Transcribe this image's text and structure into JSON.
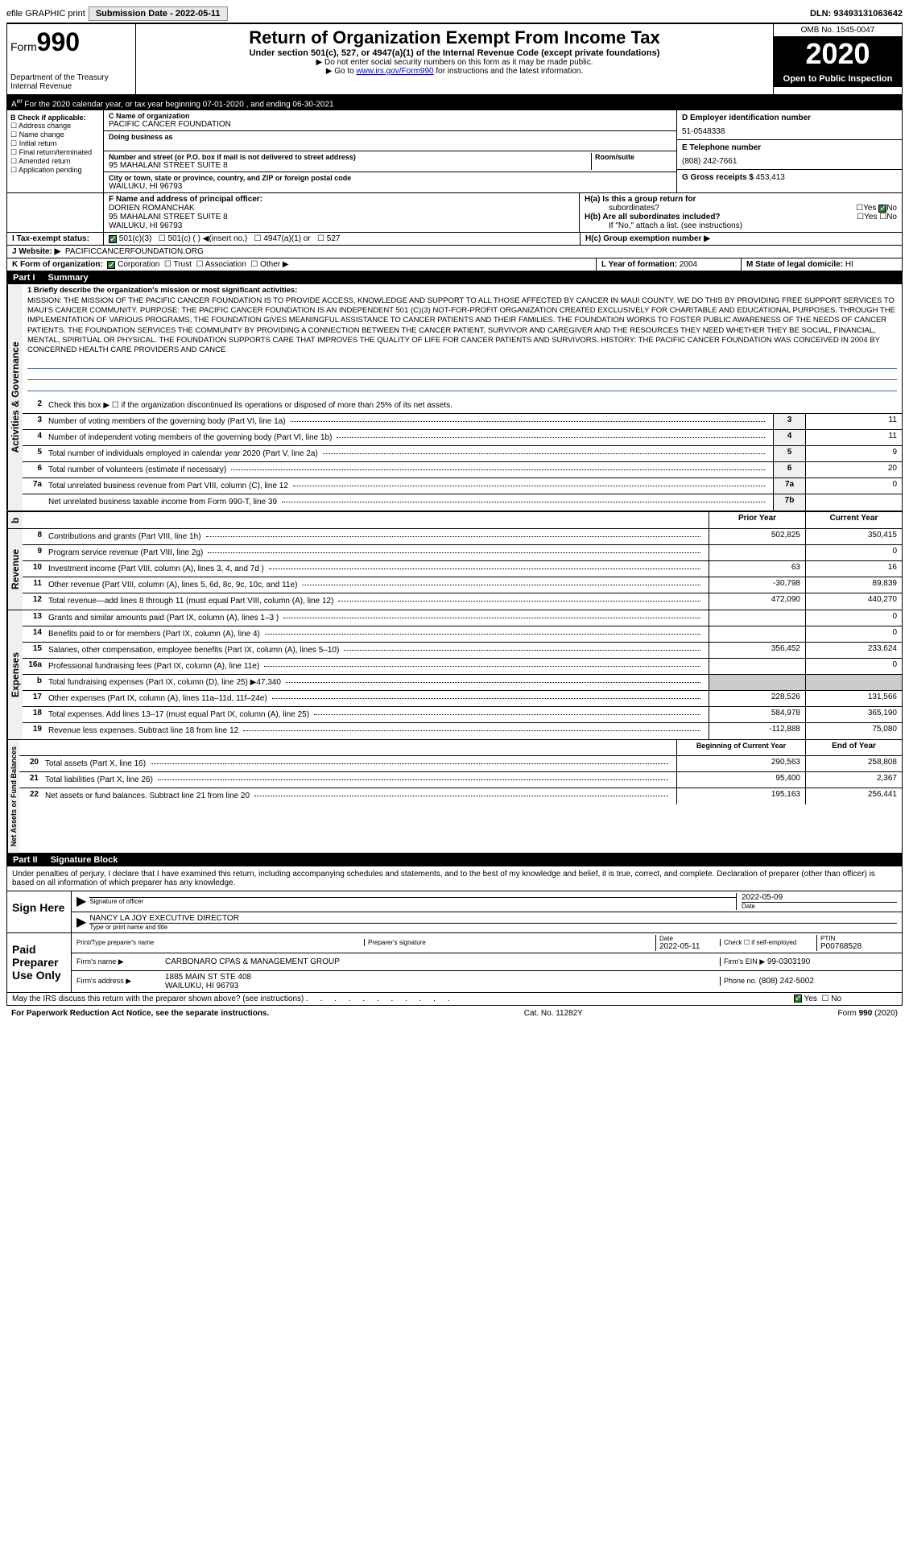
{
  "topbar": {
    "efile": "efile GRAPHIC print",
    "submission": "Submission Date - 2022-05-11",
    "dln": "DLN: 93493131063642"
  },
  "header": {
    "form_prefix": "Form",
    "form_num": "990",
    "dept": "Department of the Treasury",
    "irs": "Internal Revenue",
    "title": "Return of Organization Exempt From Income Tax",
    "subtitle": "Under section 501(c), 527, or 4947(a)(1) of the Internal Revenue Code (except private foundations)",
    "note1": "▶ Do not enter social security numbers on this form as it may be made public.",
    "note2_pre": "▶ Go to ",
    "note2_link": "www.irs.gov/Form990",
    "note2_post": " for instructions and the latest information.",
    "omb": "OMB No. 1545-0047",
    "year": "2020",
    "inspection": "Open to Public Inspection"
  },
  "calyear": "For the 2020 calendar year, or tax year beginning 07-01-2020   , and ending 06-30-2021",
  "secB": {
    "title": "B Check if applicable:",
    "items": [
      "Address change",
      "Name change",
      "Initial return",
      "Final return/terminated",
      "Amended return",
      "Application pending"
    ]
  },
  "secC": {
    "name_label": "C Name of organization",
    "name": "PACIFIC CANCER FOUNDATION",
    "dba_label": "Doing business as",
    "addr_label": "Number and street (or P.O. box if mail is not delivered to street address)",
    "addr": "95 MAHALANI STREET SUITE 8",
    "room_label": "Room/suite",
    "city_label": "City or town, state or province, country, and ZIP or foreign postal code",
    "city": "WAILUKU, HI  96793"
  },
  "secD": {
    "label": "D Employer identification number",
    "ein": "51-0548338"
  },
  "secE": {
    "label": "E Telephone number",
    "phone": "(808) 242-7661"
  },
  "secG": {
    "label": "G Gross receipts $ ",
    "amount": "453,413"
  },
  "secF": {
    "label": "F  Name and address of principal officer:",
    "name": "DORIEN ROMANCHAK",
    "addr1": "95 MAHALANI STREET SUITE 8",
    "addr2": "WAILUKU, HI  96793"
  },
  "secH": {
    "a_label": "H(a)  Is this a group return for",
    "a_sub": "subordinates?",
    "b_label": "H(b)  Are all subordinates included?",
    "b_note": "If \"No,\" attach a list. (see instructions)",
    "c_label": "H(c)  Group exemption number ▶"
  },
  "secI": {
    "label": "I  Tax-exempt status:",
    "opt1": "501(c)(3)",
    "opt2": "501(c) (  ) ◀(insert no.)",
    "opt3": "4947(a)(1) or",
    "opt4": "527"
  },
  "secJ": {
    "label": "J  Website: ▶",
    "url": "PACIFICCANCERFOUNDATION.ORG"
  },
  "secK": {
    "label": "K Form of organization:",
    "opts": [
      "Corporation",
      "Trust",
      "Association",
      "Other ▶"
    ]
  },
  "secL": {
    "label": "L Year of formation: ",
    "val": "2004"
  },
  "secM": {
    "label": "M State of legal domicile: ",
    "val": "HI"
  },
  "part1": {
    "num": "Part I",
    "title": "Summary"
  },
  "mission": {
    "intro": "1   Briefly describe the organization's mission or most significant activities:",
    "text": "MISSION: THE MISSION OF THE PACIFIC CANCER FOUNDATION IS TO PROVIDE ACCESS, KNOWLEDGE AND SUPPORT TO ALL THOSE AFFECTED BY CANCER IN MAUI COUNTY. WE DO THIS BY PROVIDING FREE SUPPORT SERVICES TO MAUI'S CANCER COMMUNITY. PURPOSE: THE PACIFIC CANCER FOUNDATION IS AN INDEPENDENT 501 (C)(3) NOT-FOR-PROFIT ORGANIZATION CREATED EXCLUSIVELY FOR CHARITABLE AND EDUCATIONAL PURPOSES. THROUGH THE IMPLEMENTATION OF VARIOUS PROGRAMS, THE FOUNDATION GIVES MEANINGFUL ASSISTANCE TO CANCER PATIENTS AND THEIR FAMILIES. THE FOUNDATION WORKS TO FOSTER PUBLIC AWARENESS OF THE NEEDS OF CANCER PATIENTS. THE FOUNDATION SERVICES THE COMMUNITY BY PROVIDING A CONNECTION BETWEEN THE CANCER PATIENT, SURVIVOR AND CAREGIVER AND THE RESOURCES THEY NEED WHETHER THEY BE SOCIAL, FINANCIAL, MENTAL, SPIRITUAL OR PHYSICAL. THE FOUNDATION SUPPORTS CARE THAT IMPROVES THE QUALITY OF LIFE FOR CANCER PATIENTS AND SURVIVORS. HISTORY: THE PACIFIC CANCER FOUNDATION WAS CONCEIVED IN 2004 BY CONCERNED HEALTH CARE PROVIDERS AND CANCE"
  },
  "gov_rows": [
    {
      "n": "2",
      "d": "Check this box ▶ ☐ if the organization discontinued its operations or disposed of more than 25% of its net assets."
    },
    {
      "n": "3",
      "d": "Number of voting members of the governing body (Part VI, line 1a)",
      "nc": "3",
      "v": "11"
    },
    {
      "n": "4",
      "d": "Number of independent voting members of the governing body (Part VI, line 1b)",
      "nc": "4",
      "v": "11"
    },
    {
      "n": "5",
      "d": "Total number of individuals employed in calendar year 2020 (Part V, line 2a)",
      "nc": "5",
      "v": "9"
    },
    {
      "n": "6",
      "d": "Total number of volunteers (estimate if necessary)",
      "nc": "6",
      "v": "20"
    },
    {
      "n": "7a",
      "d": "Total unrelated business revenue from Part VIII, column (C), line 12",
      "nc": "7a",
      "v": "0"
    },
    {
      "n": "",
      "d": "Net unrelated business taxable income from Form 990-T, line 39",
      "nc": "7b",
      "v": ""
    }
  ],
  "col_headers": {
    "prior": "Prior Year",
    "current": "Current Year"
  },
  "rev_rows": [
    {
      "n": "8",
      "d": "Contributions and grants (Part VIII, line 1h)",
      "p": "502,825",
      "c": "350,415"
    },
    {
      "n": "9",
      "d": "Program service revenue (Part VIII, line 2g)",
      "p": "",
      "c": "0"
    },
    {
      "n": "10",
      "d": "Investment income (Part VIII, column (A), lines 3, 4, and 7d )",
      "p": "63",
      "c": "16"
    },
    {
      "n": "11",
      "d": "Other revenue (Part VIII, column (A), lines 5, 6d, 8c, 9c, 10c, and 11e)",
      "p": "-30,798",
      "c": "89,839"
    },
    {
      "n": "12",
      "d": "Total revenue—add lines 8 through 11 (must equal Part VIII, column (A), line 12)",
      "p": "472,090",
      "c": "440,270"
    }
  ],
  "exp_rows": [
    {
      "n": "13",
      "d": "Grants and similar amounts paid (Part IX, column (A), lines 1–3 )",
      "p": "",
      "c": "0"
    },
    {
      "n": "14",
      "d": "Benefits paid to or for members (Part IX, column (A), line 4)",
      "p": "",
      "c": "0"
    },
    {
      "n": "15",
      "d": "Salaries, other compensation, employee benefits (Part IX, column (A), lines 5–10)",
      "p": "356,452",
      "c": "233,624"
    },
    {
      "n": "16a",
      "d": "Professional fundraising fees (Part IX, column (A), line 11e)",
      "p": "",
      "c": "0"
    },
    {
      "n": "b",
      "d": "Total fundraising expenses (Part IX, column (D), line 25) ▶47,340",
      "shaded": true
    },
    {
      "n": "17",
      "d": "Other expenses (Part IX, column (A), lines 11a–11d, 11f–24e)",
      "p": "228,526",
      "c": "131,566"
    },
    {
      "n": "18",
      "d": "Total expenses. Add lines 13–17 (must equal Part IX, column (A), line 25)",
      "p": "584,978",
      "c": "365,190"
    },
    {
      "n": "19",
      "d": "Revenue less expenses. Subtract line 18 from line 12",
      "p": "-112,888",
      "c": "75,080"
    }
  ],
  "net_headers": {
    "begin": "Beginning of Current Year",
    "end": "End of Year"
  },
  "net_rows": [
    {
      "n": "20",
      "d": "Total assets (Part X, line 16)",
      "p": "290,563",
      "c": "258,808"
    },
    {
      "n": "21",
      "d": "Total liabilities (Part X, line 26)",
      "p": "95,400",
      "c": "2,367"
    },
    {
      "n": "22",
      "d": "Net assets or fund balances. Subtract line 21 from line 20",
      "p": "195,163",
      "c": "256,441"
    }
  ],
  "part2": {
    "num": "Part II",
    "title": "Signature Block"
  },
  "penalties": "Under penalties of perjury, I declare that I have examined this return, including accompanying schedules and statements, and to the best of my knowledge and belief, it is true, correct, and complete. Declaration of preparer (other than officer) is based on all information of which preparer has any knowledge.",
  "sign": {
    "here": "Sign Here",
    "sig_label": "Signature of officer",
    "date": "2022-05-09",
    "date_label": "Date",
    "name": "NANCY LA JOY  EXECUTIVE DIRECTOR",
    "name_label": "Type or print name and title"
  },
  "preparer": {
    "title": "Paid Preparer Use Only",
    "name_label": "Print/Type preparer's name",
    "sig_label": "Preparer's signature",
    "date_label": "Date",
    "date": "2022-05-11",
    "check_label": "Check ☐ if self-employed",
    "ptin_label": "PTIN",
    "ptin": "P00768528",
    "firm_name_label": "Firm's name    ▶",
    "firm_name": "CARBONARO CPAS & MANAGEMENT GROUP",
    "firm_ein_label": "Firm's EIN ▶",
    "firm_ein": "99-0303190",
    "firm_addr_label": "Firm's address ▶",
    "firm_addr1": "1885 MAIN ST STE 408",
    "firm_addr2": "WAILUKU, HI  96793",
    "phone_label": "Phone no. ",
    "phone": "(808) 242-5002"
  },
  "discuss": "May the IRS discuss this return with the preparer shown above? (see instructions)",
  "footer": {
    "left": "For Paperwork Reduction Act Notice, see the separate instructions.",
    "center": "Cat. No. 11282Y",
    "right": "Form 990 (2020)"
  },
  "vert": {
    "gov": "Activities & Governance",
    "rev": "Revenue",
    "exp": "Expenses",
    "net": "Net Assets or Fund Balances"
  },
  "yesno": {
    "yes": "Yes",
    "no": "No"
  }
}
